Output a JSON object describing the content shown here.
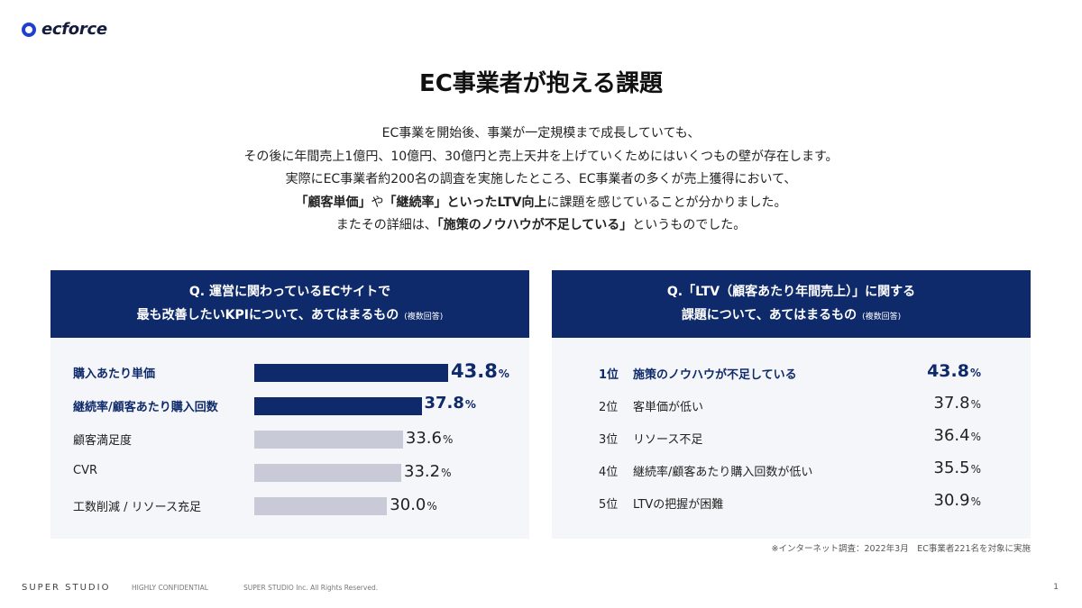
{
  "brand": {
    "logo_text": "ecforce",
    "logo_color": "#1e3fd0"
  },
  "title": "EC事業者が抱える課題",
  "intro": {
    "line1": "EC事業を開始後、事業が一定規模まで成長していても、",
    "line2": "その後に年間売上1億円、10億円、30億円と売上天井を上げていくためにはいくつもの壁が存在します。",
    "line3": "実際にEC事業者約200名の調査を実施したところ、EC事業者の多くが売上獲得において、",
    "line4_bold1": "「顧客単価」",
    "line4_mid": "や",
    "line4_bold2": "「継続率」といったLTV向上",
    "line4_end": "に課題を感じていることが分かりました。",
    "line5_start": "またその詳細は、",
    "line5_bold": "「施策のノウハウが不足している」",
    "line5_end": "というものでした。"
  },
  "colors": {
    "navy": "#0f2a6b",
    "gray_bar": "#c8cad8",
    "panel_bg": "#f5f6f9"
  },
  "pct_suffix": "%",
  "chart_data": [
    {
      "type": "bar",
      "title_line1": "Q. 運営に関わっているECサイトで",
      "title_line2": "最も改善したいKPIについて、あてはまるもの",
      "note": "(複数回答)",
      "categories": [
        "購入あたり単価",
        "継続率/顧客あたり購入回数",
        "顧客満足度",
        "CVR",
        "工数削減 / リソース充足"
      ],
      "values": [
        43.8,
        37.8,
        33.6,
        33.2,
        30.0
      ],
      "value_labels": [
        "43.8",
        "37.8",
        "33.6",
        "33.2",
        "30.0"
      ],
      "highlight": [
        true,
        true,
        false,
        false,
        false
      ]
    },
    {
      "type": "table",
      "title_line1": "Q.「LTV（顧客あたり年間売上）」に関する",
      "title_line2": "課題について、あてはまるもの",
      "note": "(複数回答)",
      "ranks": [
        "1位",
        "2位",
        "3位",
        "4位",
        "5位"
      ],
      "categories": [
        "施策のノウハウが不足している",
        "客単価が低い",
        "リソース不足",
        "継続率/顧客あたり購入回数が低い",
        "LTVの把握が困難"
      ],
      "values": [
        43.8,
        37.8,
        36.4,
        35.5,
        30.9
      ],
      "value_labels": [
        "43.8",
        "37.8",
        "36.4",
        "35.5",
        "30.9"
      ],
      "highlight": [
        true,
        false,
        false,
        false,
        false
      ]
    }
  ],
  "source": "※インターネット調査：2022年3月　EC事業者221名を対象に実施",
  "footer": {
    "brand": "SUPER STUDIO",
    "confidential": "HIGHLY CONFIDENTIAL",
    "copyright": "SUPER STUDIO Inc. All Rights Reserved.",
    "page": "1"
  }
}
